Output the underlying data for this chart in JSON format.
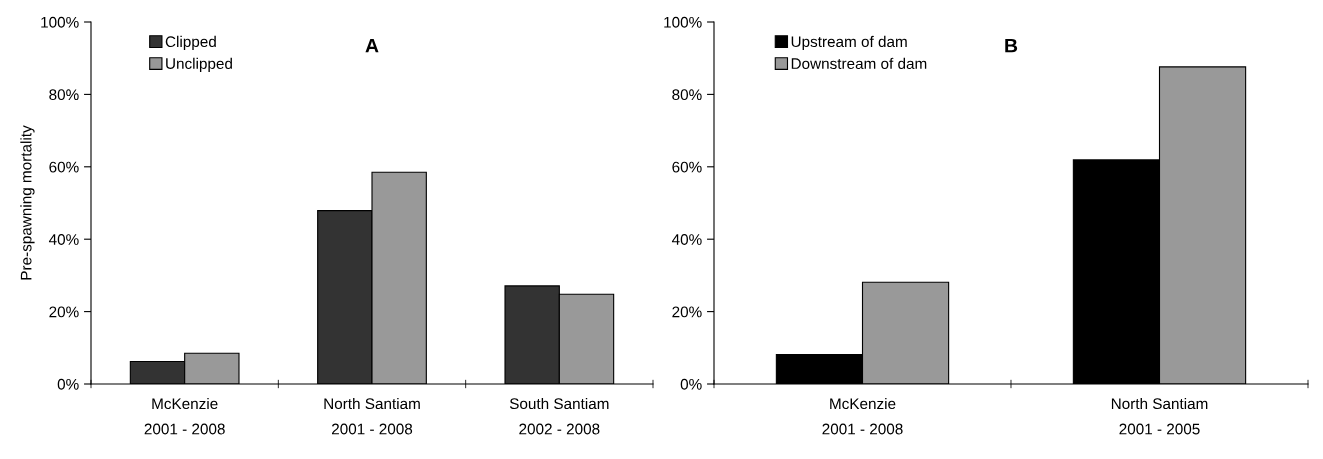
{
  "chart_data": [
    {
      "type": "bar",
      "title": "A",
      "ylabel": "Pre-spawning mortality",
      "categories": [
        "McKenzie\n2001 - 2008",
        "North Santiam\n2001 - 2008",
        "South Santiam\n2002 - 2008"
      ],
      "series": [
        {
          "name": "Clipped",
          "color": "#333333",
          "values": [
            6.2,
            47.9,
            27.1
          ]
        },
        {
          "name": "Unclipped",
          "color": "#999999",
          "values": [
            8.5,
            58.5,
            24.8
          ]
        }
      ],
      "ylim": [
        0,
        100
      ],
      "yticks": [
        {
          "value": 0,
          "label": "0%"
        },
        {
          "value": 20,
          "label": "20%"
        },
        {
          "value": 40,
          "label": "40%"
        },
        {
          "value": 60,
          "label": "60%"
        },
        {
          "value": 80,
          "label": "80%"
        },
        {
          "value": 100,
          "label": "100%"
        }
      ],
      "grid": false,
      "legend": "top left"
    },
    {
      "type": "bar",
      "title": "B",
      "categories": [
        "McKenzie\n2001 - 2008",
        "North Santiam\n2001 - 2005"
      ],
      "series": [
        {
          "name": "Upstream of dam",
          "color": "#000000",
          "values": [
            8.1,
            61.9
          ]
        },
        {
          "name": "Downstream of dam",
          "color": "#999999",
          "values": [
            28.1,
            87.6
          ]
        }
      ],
      "ylim": [
        0,
        100
      ],
      "yticks": [
        {
          "value": 0,
          "label": "0%"
        },
        {
          "value": 20,
          "label": "20%"
        },
        {
          "value": 40,
          "label": "40%"
        },
        {
          "value": 60,
          "label": "60%"
        },
        {
          "value": 80,
          "label": "80%"
        },
        {
          "value": 100,
          "label": "100%"
        }
      ],
      "grid": false,
      "legend": "top left"
    }
  ]
}
